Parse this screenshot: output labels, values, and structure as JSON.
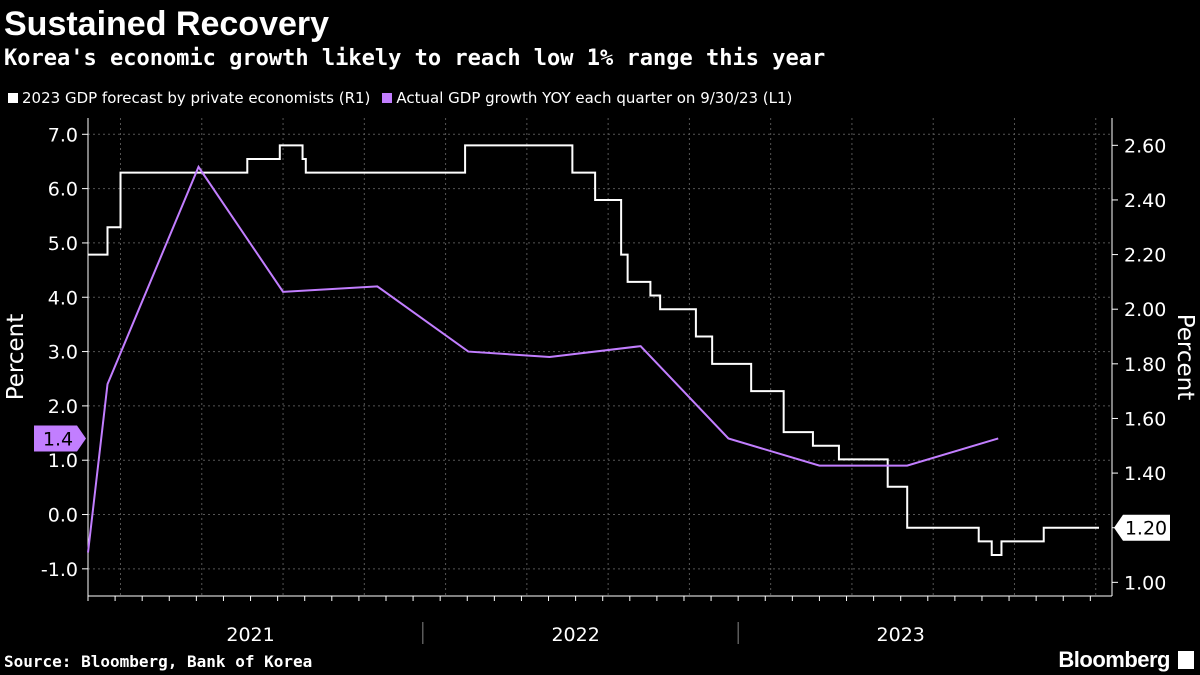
{
  "header": {
    "title": "Sustained Recovery",
    "subtitle": "Korea's economic growth likely to reach low 1% range this year"
  },
  "footer": {
    "source": "Source: Bloomberg, Bank of Korea",
    "brand": "Bloomberg"
  },
  "chart_data": {
    "type": "line",
    "title": "Sustained Recovery",
    "subtitle": "Korea's economic growth likely to reach low 1% range this year",
    "legend_position": "top-left",
    "grid": true,
    "left_axis": {
      "label": "Percent",
      "ylim": [
        -1.5,
        7.3
      ],
      "ticks": [
        7.0,
        6.0,
        5.0,
        4.0,
        3.0,
        2.0,
        1.0,
        0.0,
        -1.0
      ],
      "tick_labels": [
        "7.0",
        "6.0",
        "5.0",
        "4.0",
        "3.0",
        "2.0",
        "1.0",
        "0.0",
        "-1.0"
      ]
    },
    "right_axis": {
      "label": "Percent",
      "ylim": [
        0.95,
        2.7
      ],
      "ticks": [
        2.6,
        2.4,
        2.2,
        2.0,
        1.8,
        1.6,
        1.4,
        1.2,
        1.0
      ],
      "tick_labels": [
        "2.60",
        "2.40",
        "2.20",
        "2.00",
        "1.80",
        "1.60",
        "1.40",
        "1.20",
        "1.00"
      ]
    },
    "x_axis": {
      "range": [
        2020.75,
        2023.9
      ],
      "year_labels": [
        {
          "x": 2021.25,
          "label": "2021"
        },
        {
          "x": 2022.25,
          "label": "2022"
        },
        {
          "x": 2023.25,
          "label": "2023"
        }
      ],
      "year_separators": [
        2021.78,
        2022.75
      ]
    },
    "series": [
      {
        "name": "2023 GDP forecast by private economists (R1)",
        "axis": "right",
        "color": "#ffffff",
        "step": true,
        "points": [
          [
            2020.75,
            2.2
          ],
          [
            2020.81,
            2.3
          ],
          [
            2020.85,
            2.5
          ],
          [
            2021.24,
            2.55
          ],
          [
            2021.34,
            2.6
          ],
          [
            2021.41,
            2.55
          ],
          [
            2021.42,
            2.5
          ],
          [
            2021.91,
            2.6
          ],
          [
            2022.07,
            2.6
          ],
          [
            2022.24,
            2.5
          ],
          [
            2022.31,
            2.4
          ],
          [
            2022.39,
            2.2
          ],
          [
            2022.41,
            2.1
          ],
          [
            2022.48,
            2.05
          ],
          [
            2022.51,
            2.0
          ],
          [
            2022.62,
            1.9
          ],
          [
            2022.67,
            1.8
          ],
          [
            2022.79,
            1.7
          ],
          [
            2022.89,
            1.55
          ],
          [
            2022.98,
            1.5
          ],
          [
            2023.06,
            1.45
          ],
          [
            2023.21,
            1.35
          ],
          [
            2023.27,
            1.2
          ],
          [
            2023.49,
            1.15
          ],
          [
            2023.53,
            1.1
          ],
          [
            2023.56,
            1.15
          ],
          [
            2023.69,
            1.2
          ],
          [
            2023.86,
            1.2
          ]
        ]
      },
      {
        "name": "Actual GDP growth YOY each quarter on 9/30/23 (L1)",
        "axis": "left",
        "color": "#c27eff",
        "step": false,
        "points": [
          [
            2020.75,
            -0.7
          ],
          [
            2020.81,
            2.4
          ],
          [
            2021.09,
            6.4
          ],
          [
            2021.35,
            4.1
          ],
          [
            2021.64,
            4.2
          ],
          [
            2021.92,
            3.0
          ],
          [
            2022.17,
            2.9
          ],
          [
            2022.45,
            3.1
          ],
          [
            2022.72,
            1.4
          ],
          [
            2023.0,
            0.9
          ],
          [
            2023.27,
            0.9
          ],
          [
            2023.55,
            1.4
          ]
        ]
      }
    ],
    "last_value_labels": {
      "left": "1.4",
      "right": "1.20"
    }
  }
}
